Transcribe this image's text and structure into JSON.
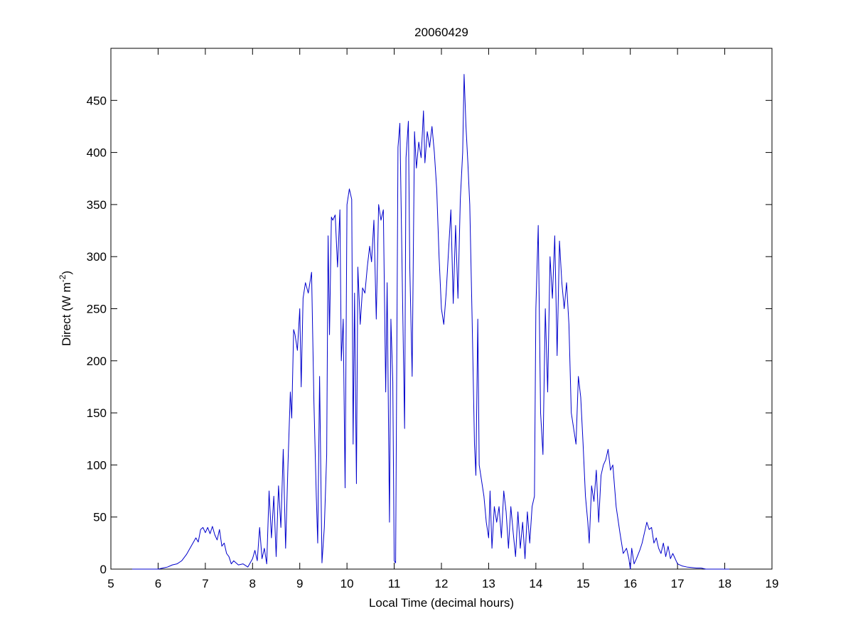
{
  "chart_data": {
    "type": "line",
    "title": "20060429",
    "x_label": "Local Time (decimal hours)",
    "y_label": [
      "Direct (W m",
      "-2",
      ")"
    ],
    "xlim": [
      5,
      19
    ],
    "xticks": [
      5,
      6,
      7,
      8,
      9,
      10,
      11,
      12,
      13,
      14,
      15,
      16,
      17,
      18,
      19
    ],
    "ylim": [
      0,
      500
    ],
    "yticks": [
      0,
      50,
      100,
      150,
      200,
      250,
      300,
      350,
      400,
      450
    ],
    "grid": false,
    "box": true,
    "series": [
      {
        "color": "#0000cc",
        "x": [
          5.45,
          6.0,
          6.1,
          6.2,
          6.3,
          6.4,
          6.5,
          6.6,
          6.7,
          6.8,
          6.85,
          6.9,
          6.95,
          7.0,
          7.05,
          7.1,
          7.15,
          7.2,
          7.25,
          7.3,
          7.35,
          7.4,
          7.45,
          7.5,
          7.55,
          7.6,
          7.7,
          7.8,
          7.9,
          8.0,
          8.05,
          8.1,
          8.15,
          8.2,
          8.25,
          8.3,
          8.35,
          8.4,
          8.45,
          8.5,
          8.55,
          8.6,
          8.65,
          8.7,
          8.75,
          8.8,
          8.83,
          8.87,
          8.9,
          8.95,
          9.0,
          9.03,
          9.07,
          9.12,
          9.18,
          9.25,
          9.3,
          9.35,
          9.38,
          9.42,
          9.47,
          9.52,
          9.57,
          9.6,
          9.63,
          9.67,
          9.7,
          9.75,
          9.8,
          9.85,
          9.88,
          9.92,
          9.96,
          10.0,
          10.05,
          10.1,
          10.13,
          10.16,
          10.2,
          10.23,
          10.28,
          10.33,
          10.38,
          10.43,
          10.48,
          10.52,
          10.57,
          10.62,
          10.67,
          10.72,
          10.77,
          10.82,
          10.85,
          10.9,
          10.93,
          10.97,
          11.0,
          11.03,
          11.08,
          11.12,
          11.17,
          11.22,
          11.25,
          11.3,
          11.33,
          11.38,
          11.43,
          11.47,
          11.52,
          11.57,
          11.62,
          11.65,
          11.7,
          11.75,
          11.8,
          11.85,
          11.9,
          11.95,
          12.0,
          12.05,
          12.1,
          12.15,
          12.2,
          12.25,
          12.3,
          12.35,
          12.4,
          12.45,
          12.48,
          12.52,
          12.56,
          12.6,
          12.65,
          12.7,
          12.73,
          12.77,
          12.8,
          12.85,
          12.9,
          12.95,
          13.0,
          13.03,
          13.07,
          13.12,
          13.17,
          13.22,
          13.27,
          13.32,
          13.37,
          13.42,
          13.47,
          13.52,
          13.57,
          13.62,
          13.67,
          13.72,
          13.77,
          13.82,
          13.87,
          13.92,
          13.97,
          14.0,
          14.05,
          14.1,
          14.15,
          14.2,
          14.25,
          14.3,
          14.35,
          14.4,
          14.45,
          14.5,
          14.55,
          14.6,
          14.65,
          14.7,
          14.75,
          14.8,
          14.85,
          14.9,
          14.95,
          15.0,
          15.05,
          15.1,
          15.13,
          15.18,
          15.23,
          15.28,
          15.33,
          15.38,
          15.43,
          15.48,
          15.53,
          15.58,
          15.63,
          15.7,
          15.78,
          15.85,
          15.92,
          15.97,
          16.0,
          16.03,
          16.08,
          16.13,
          16.2,
          16.25,
          16.3,
          16.35,
          16.4,
          16.45,
          16.5,
          16.55,
          16.6,
          16.65,
          16.7,
          16.75,
          16.8,
          16.85,
          16.9,
          17.0,
          17.1,
          17.2,
          17.4,
          17.5,
          17.6,
          18.1
        ],
        "values": [
          0,
          0,
          1,
          2,
          4,
          5,
          8,
          14,
          22,
          30,
          26,
          38,
          40,
          35,
          40,
          34,
          41,
          33,
          28,
          38,
          22,
          25,
          15,
          12,
          5,
          8,
          4,
          5,
          2,
          10,
          18,
          8,
          40,
          10,
          20,
          5,
          75,
          30,
          70,
          12,
          80,
          40,
          115,
          20,
          100,
          170,
          145,
          230,
          225,
          210,
          250,
          175,
          260,
          275,
          265,
          285,
          160,
          70,
          25,
          185,
          6,
          40,
          110,
          320,
          225,
          338,
          335,
          340,
          290,
          345,
          200,
          240,
          78,
          350,
          365,
          355,
          120,
          265,
          82,
          290,
          235,
          270,
          265,
          290,
          310,
          295,
          335,
          240,
          350,
          335,
          345,
          170,
          275,
          45,
          240,
          180,
          8,
          6,
          405,
          428,
          280,
          135,
          395,
          430,
          290,
          185,
          420,
          385,
          410,
          395,
          440,
          390,
          420,
          405,
          425,
          400,
          365,
          300,
          250,
          235,
          265,
          305,
          345,
          255,
          330,
          260,
          355,
          400,
          475,
          425,
          390,
          350,
          240,
          120,
          90,
          240,
          100,
          85,
          70,
          45,
          30,
          75,
          20,
          60,
          45,
          60,
          30,
          75,
          55,
          20,
          60,
          35,
          12,
          55,
          20,
          45,
          10,
          55,
          25,
          60,
          70,
          250,
          330,
          150,
          110,
          250,
          170,
          300,
          260,
          320,
          205,
          315,
          275,
          250,
          275,
          235,
          150,
          135,
          120,
          185,
          165,
          120,
          70,
          45,
          25,
          80,
          65,
          95,
          45,
          90,
          100,
          105,
          115,
          95,
          100,
          60,
          35,
          15,
          20,
          10,
          0,
          20,
          5,
          10,
          18,
          25,
          35,
          45,
          38,
          40,
          25,
          30,
          20,
          15,
          25,
          12,
          22,
          10,
          15,
          5,
          3,
          2,
          1,
          1,
          0,
          0
        ]
      }
    ]
  }
}
